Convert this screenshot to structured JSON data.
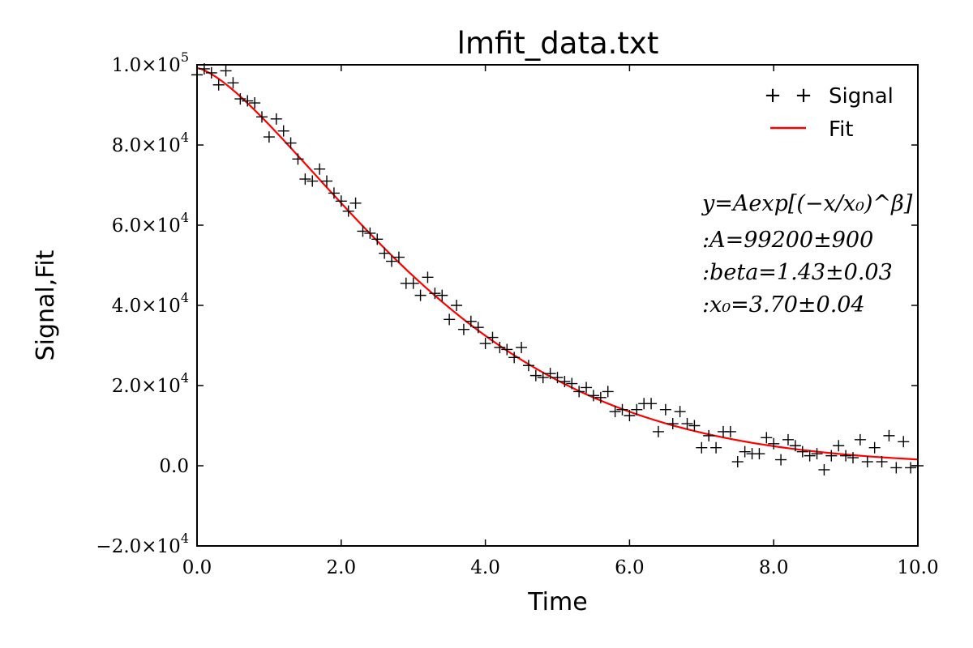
{
  "chart_data": {
    "type": "scatter",
    "title": "lmfit_data.txt",
    "xlabel": "Time",
    "ylabel": "Signal,Fit",
    "xlim": [
      0,
      10
    ],
    "ylim": [
      -20000,
      100000
    ],
    "x_ticks": [
      0,
      2,
      4,
      6,
      8,
      10
    ],
    "x_tick_labels": [
      "0.0",
      "2.0",
      "4.0",
      "6.0",
      "8.0",
      "10.0"
    ],
    "y_ticks": [
      -20000,
      0,
      20000,
      40000,
      60000,
      80000,
      100000
    ],
    "y_tick_labels": [
      {
        "mant": "−2.0×10",
        "exp": "4"
      },
      {
        "mant": "0.0",
        "exp": ""
      },
      {
        "mant": "2.0×10",
        "exp": "4"
      },
      {
        "mant": "4.0×10",
        "exp": "4"
      },
      {
        "mant": "6.0×10",
        "exp": "4"
      },
      {
        "mant": "8.0×10",
        "exp": "4"
      },
      {
        "mant": "1.0×10",
        "exp": "5"
      }
    ],
    "grid": false,
    "legend": {
      "position": "top-right",
      "entries": [
        "Signal",
        "Fit"
      ]
    },
    "series": [
      {
        "name": "Signal",
        "style": "plus-markers",
        "color": "#000000",
        "x": [
          0.0,
          0.1,
          0.2,
          0.3,
          0.4,
          0.5,
          0.6,
          0.7,
          0.8,
          0.9,
          1.0,
          1.1,
          1.2,
          1.3,
          1.4,
          1.5,
          1.6,
          1.7,
          1.8,
          1.9,
          2.0,
          2.1,
          2.2,
          2.3,
          2.4,
          2.5,
          2.6,
          2.7,
          2.8,
          2.9,
          3.0,
          3.1,
          3.2,
          3.3,
          3.4,
          3.5,
          3.6,
          3.7,
          3.8,
          3.9,
          4.0,
          4.1,
          4.2,
          4.3,
          4.4,
          4.5,
          4.6,
          4.7,
          4.8,
          4.9,
          5.0,
          5.1,
          5.2,
          5.3,
          5.4,
          5.5,
          5.6,
          5.7,
          5.8,
          5.9,
          6.0,
          6.1,
          6.2,
          6.3,
          6.4,
          6.5,
          6.6,
          6.7,
          6.8,
          6.9,
          7.0,
          7.1,
          7.2,
          7.3,
          7.4,
          7.5,
          7.6,
          7.7,
          7.8,
          7.9,
          8.0,
          8.1,
          8.2,
          8.3,
          8.4,
          8.5,
          8.6,
          8.7,
          8.8,
          8.9,
          9.0,
          9.1,
          9.2,
          9.3,
          9.4,
          9.5,
          9.6,
          9.7,
          9.8,
          9.9,
          10.0
        ],
        "y": [
          97500,
          99000,
          98000,
          95000,
          98500,
          95500,
          91500,
          91000,
          90500,
          87000,
          82000,
          86500,
          83500,
          80500,
          76500,
          71500,
          71000,
          74000,
          71000,
          68000,
          66000,
          63500,
          65500,
          58500,
          58000,
          56500,
          53000,
          51000,
          52000,
          45500,
          45500,
          42500,
          47000,
          43000,
          42500,
          36500,
          40000,
          34000,
          36000,
          34500,
          30500,
          32000,
          29500,
          29000,
          27000,
          29500,
          25000,
          22500,
          22000,
          23000,
          22000,
          21000,
          20500,
          18500,
          19500,
          17500,
          17000,
          18500,
          13500,
          14000,
          12500,
          14000,
          15500,
          15500,
          8500,
          14000,
          10500,
          13500,
          10500,
          10000,
          4500,
          7500,
          4500,
          8500,
          8500,
          1000,
          3500,
          3000,
          3000,
          7000,
          5500,
          1500,
          6500,
          5000,
          3500,
          2500,
          3000,
          -1000,
          2500,
          5000,
          2500,
          2000,
          6500,
          1000,
          4500,
          1000,
          7500,
          -500,
          6000,
          -500,
          0
        ]
      },
      {
        "name": "Fit",
        "style": "line",
        "color": "#ff0000",
        "model": {
          "A": 99200,
          "beta": 1.43,
          "x0": 3.7
        }
      }
    ],
    "annotations": [
      {
        "text": "y=Aexp[(−x/x₀)^β]"
      },
      {
        "text": ":A=99200±900"
      },
      {
        "text": ":beta=1.43±0.03"
      },
      {
        "text": ":x₀=3.70±0.04"
      }
    ]
  }
}
